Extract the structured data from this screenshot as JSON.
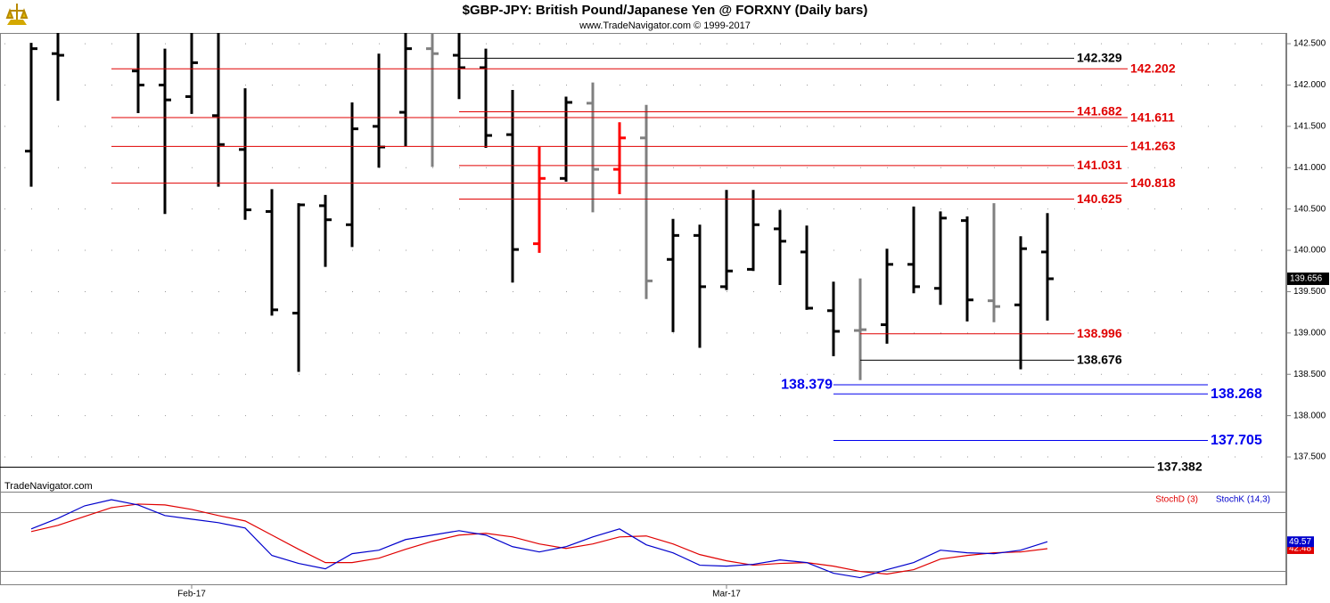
{
  "chart_data": [
    {
      "type": "ohlc",
      "title": "$GBP-JPY:  British Pound/Japanese Yen @ FORXNY  (Daily bars)",
      "subtitle": "www.TradeNavigator.com © 1999-2017",
      "watermark": "TradeNavigator.com",
      "categories": [
        null,
        null,
        null,
        null,
        null,
        null,
        "Feb-17",
        null,
        null,
        null,
        null,
        null,
        null,
        null,
        null,
        null,
        null,
        null,
        null,
        null,
        null,
        null,
        null,
        null,
        null,
        null,
        "Mar-17",
        null,
        null,
        null,
        null,
        null,
        null,
        null,
        null,
        null,
        null,
        null,
        null
      ],
      "open": [
        141.2,
        142.38,
        null,
        null,
        142.17,
        142.0,
        141.86,
        141.63,
        141.22,
        140.47,
        139.24,
        140.54,
        140.31,
        141.5,
        141.67,
        142.44,
        142.36,
        142.21,
        141.4,
        140.08,
        140.87,
        141.78,
        140.98,
        141.36,
        139.89,
        140.18,
        139.56,
        139.77,
        140.26,
        139.98,
        139.27,
        139.03,
        139.1,
        139.83,
        139.54,
        140.36,
        139.39,
        139.34,
        139.98
      ],
      "high": [
        142.51,
        142.71,
        null,
        null,
        142.71,
        142.44,
        142.71,
        142.71,
        141.96,
        140.74,
        140.57,
        140.67,
        141.79,
        142.38,
        142.63,
        142.65,
        142.64,
        142.44,
        141.94,
        141.25,
        141.86,
        142.03,
        141.55,
        141.76,
        140.38,
        140.31,
        140.73,
        140.73,
        140.49,
        140.3,
        139.62,
        139.66,
        140.02,
        140.53,
        140.47,
        140.41,
        140.57,
        140.17,
        140.45
      ],
      "low": [
        140.77,
        141.81,
        null,
        null,
        141.66,
        140.44,
        141.65,
        140.77,
        140.37,
        139.21,
        138.53,
        139.8,
        140.04,
        141.0,
        141.26,
        141.01,
        141.83,
        141.24,
        139.61,
        139.97,
        140.83,
        140.46,
        140.68,
        139.41,
        139.01,
        138.82,
        139.52,
        139.75,
        139.58,
        139.28,
        138.72,
        138.43,
        138.87,
        139.48,
        139.34,
        139.14,
        139.13,
        138.56,
        139.15
      ],
      "close": [
        142.44,
        142.36,
        null,
        null,
        142.0,
        141.82,
        142.27,
        141.28,
        140.49,
        139.28,
        140.55,
        140.37,
        141.47,
        141.25,
        142.44,
        142.38,
        142.21,
        141.39,
        140.01,
        140.87,
        141.79,
        140.98,
        141.36,
        139.63,
        140.18,
        139.56,
        139.75,
        140.31,
        140.11,
        139.3,
        139.02,
        139.04,
        139.83,
        139.56,
        140.39,
        139.4,
        139.32,
        140.02,
        139.656
      ],
      "colors": [
        "#000000",
        "#000000",
        "#000000",
        "#000000",
        "#000000",
        "#000000",
        "#000000",
        "#000000",
        "#000000",
        "#000000",
        "#000000",
        "#000000",
        "#000000",
        "#000000",
        "#000000",
        "#808080",
        "#000000",
        "#000000",
        "#000000",
        "#ff0000",
        "#000000",
        "#808080",
        "#ff0000",
        "#808080",
        "#000000",
        "#000000",
        "#000000",
        "#000000",
        "#000000",
        "#000000",
        "#000000",
        "#808080",
        "#000000",
        "#000000",
        "#000000",
        "#000000",
        "#808080",
        "#000000",
        "#000000"
      ],
      "levels": [
        {
          "value": 142.329,
          "color": "#000000"
        },
        {
          "value": 142.202,
          "color": "#e00000"
        },
        {
          "value": 141.682,
          "color": "#e00000"
        },
        {
          "value": 141.611,
          "color": "#e00000"
        },
        {
          "value": 141.263,
          "color": "#e00000"
        },
        {
          "value": 141.031,
          "color": "#e00000"
        },
        {
          "value": 140.818,
          "color": "#e00000"
        },
        {
          "value": 140.625,
          "color": "#e00000"
        },
        {
          "value": 138.996,
          "color": "#e00000"
        },
        {
          "value": 138.676,
          "color": "#000000"
        },
        {
          "value": 138.379,
          "color": "#0000ee"
        },
        {
          "value": 138.268,
          "color": "#0000ee"
        },
        {
          "value": 137.705,
          "color": "#0000ee"
        },
        {
          "value": 137.382,
          "color": "#000000"
        }
      ],
      "ylim": [
        137.08,
        142.63
      ],
      "yticks": [
        {
          "value": 137.5,
          "label": "137.500"
        },
        {
          "value": 138,
          "label": "138.000"
        },
        {
          "value": 138.5,
          "label": "138.500"
        },
        {
          "value": 139,
          "label": "139.000"
        },
        {
          "value": 139.5,
          "label": "139.500"
        },
        {
          "value": 140,
          "label": "140.000"
        },
        {
          "value": 140.5,
          "label": "140.500"
        },
        {
          "value": 141,
          "label": "141.000"
        },
        {
          "value": 141.5,
          "label": "141.500"
        },
        {
          "value": 142,
          "label": "142.000"
        },
        {
          "value": 142.5,
          "label": "142.500"
        }
      ],
      "grid": true
    },
    {
      "type": "line",
      "series": [
        {
          "name": "StochD (3)",
          "color": "#e00000",
          "values": [
            60,
            66.4,
            75.5,
            84.5,
            88.2,
            87.3,
            82.7,
            76.4,
            70.9,
            56.4,
            41.8,
            28.2,
            28.2,
            32.7,
            41.8,
            50,
            56.4,
            58.2,
            54.5,
            47.3,
            42.7,
            47.3,
            54.5,
            55.5,
            47.3,
            36.4,
            30,
            25.5,
            27.3,
            28.2,
            24.5,
            19.1,
            16.4,
            20.9,
            31.8,
            35.5,
            38.2,
            39.1,
            42.48
          ]
        },
        {
          "name": "StochK (14,3)",
          "color": "#0000cc",
          "values": [
            62.7,
            73.6,
            86.4,
            92.7,
            87.3,
            76.4,
            72.7,
            69.1,
            63.6,
            35.5,
            27.3,
            21.8,
            37.3,
            40.9,
            51.8,
            56.4,
            60.9,
            56.4,
            44.5,
            39.1,
            44.5,
            54.5,
            62.7,
            46.4,
            38.2,
            25.5,
            24.5,
            26.4,
            30.9,
            28.2,
            17.3,
            12.7,
            20.9,
            28.2,
            40.9,
            38.2,
            37.3,
            40.9,
            49.57
          ]
        }
      ],
      "ylim": [
        5,
        100
      ],
      "guide_lines": [
        20,
        80
      ]
    }
  ]
}
